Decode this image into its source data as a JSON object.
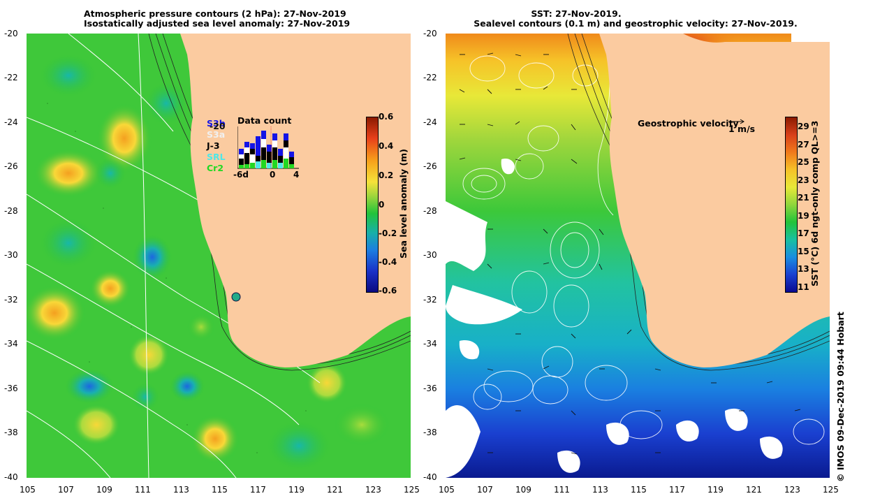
{
  "left_panel": {
    "title_line1": "Atmospheric pressure contours (2 hPa): 27-Nov-2019",
    "title_line2": "Isostatically adjusted sea level anomaly: 27-Nov-2019",
    "colorbar_label": "Sea level anomaly (m)",
    "colorbar_ticks": [
      "0.6",
      "0.4",
      "0.2",
      "0",
      "-0.2",
      "-0.4",
      "-0.6"
    ],
    "colorbar_colors": [
      "#8b1a00",
      "#e8401a",
      "#f7a21b",
      "#f6e23a",
      "#9fd63c",
      "#22c33a",
      "#18b0a8",
      "#1c7ee0",
      "#1a32c8",
      "#0a0a80"
    ],
    "data_count": {
      "title": "Data count",
      "satellites": [
        {
          "name": "S3b",
          "color": "#1414e6"
        },
        {
          "name": "S3a",
          "color": "#f0f0f0"
        },
        {
          "name": "J-3",
          "color": "#000000"
        },
        {
          "name": "SRL",
          "color": "#4ee8e8"
        },
        {
          "name": "Cr2",
          "color": "#22d822"
        }
      ],
      "overlap_label": "-20",
      "x_ticks": [
        "-6d",
        "0",
        "4"
      ]
    }
  },
  "right_panel": {
    "title_line1": "SST: 27-Nov-2019.",
    "title_line2": "Sealevel contours (0.1 m) and geostrophic velocity: 27-Nov-2019.",
    "colorbar_label": "SST (°C) 6d ngt-only comp QL>=3",
    "colorbar_ticks": [
      "29",
      "27",
      "25",
      "23",
      "21",
      "19",
      "17",
      "15",
      "13",
      "11"
    ],
    "colorbar_colors": [
      "#8b1a00",
      "#d8401a",
      "#f07a1b",
      "#f6c228",
      "#e8e838",
      "#8fd63c",
      "#22c33a",
      "#18c0a0",
      "#1a8ee0",
      "#1a40d0",
      "#0a0a90"
    ],
    "velocity_label": "Geostrophic velocity",
    "velocity_scale": "1 m/s"
  },
  "axes": {
    "lon_ticks": [
      "105",
      "107",
      "109",
      "111",
      "113",
      "115",
      "117",
      "119",
      "121",
      "123",
      "125"
    ],
    "lat_ticks": [
      "-20",
      "-22",
      "-24",
      "-26",
      "-28",
      "-30",
      "-32",
      "-34",
      "-36",
      "-38",
      "-40"
    ]
  },
  "credit": "© IMOS 09-Dec-2019 09:44 Hobart",
  "colors": {
    "land": "#fbcba0",
    "ocean_green": "#2ec335",
    "contour": "#ffffff"
  }
}
